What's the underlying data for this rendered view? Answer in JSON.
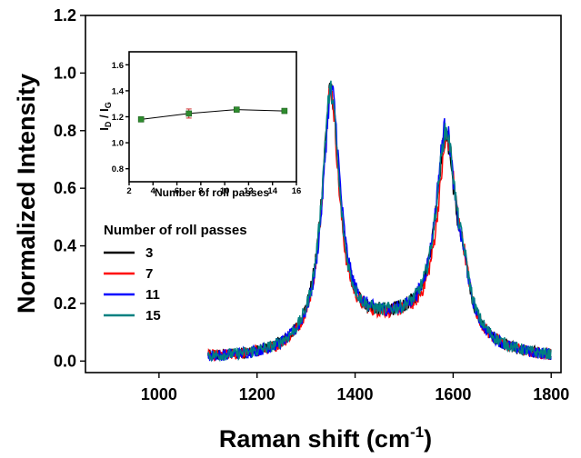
{
  "chart_data": [
    {
      "type": "line",
      "xlabel": "Raman shift (cm",
      "xlabel_sup": "-1",
      "xlabel_end": ")",
      "ylabel": "Normalized Intensity",
      "xlim": [
        850,
        1820
      ],
      "ylim": [
        -0.04,
        1.2
      ],
      "xticks": [
        1000,
        1200,
        1400,
        1600,
        1800
      ],
      "yticks": [
        "0.0",
        "0.2",
        "0.4",
        "0.6",
        "0.8",
        "1.0",
        "1.2"
      ],
      "yticks_values": [
        0,
        0.2,
        0.4,
        0.6,
        0.8,
        1.0,
        1.2
      ],
      "x_start": 1100,
      "x_end": 1800,
      "legend": {
        "title": "Number of roll passes",
        "placement": "left"
      },
      "series": [
        {
          "name": "3",
          "color": "#000000",
          "d_peak": 1350,
          "d_height": 1.0,
          "d_width": 22,
          "g_peak": 1585,
          "g_height": 0.8,
          "g_width": 26,
          "shoulder": 0.27
        },
        {
          "name": "7",
          "color": "#ff0000",
          "d_peak": 1350,
          "d_height": 1.0,
          "d_width": 21,
          "g_peak": 1588,
          "g_height": 0.79,
          "g_width": 25,
          "shoulder": 0.28
        },
        {
          "name": "11",
          "color": "#0000ff",
          "d_peak": 1352,
          "d_height": 1.0,
          "d_width": 22,
          "g_peak": 1585,
          "g_height": 0.84,
          "g_width": 25,
          "shoulder": 0.28
        },
        {
          "name": "15",
          "color": "#008080",
          "d_peak": 1350,
          "d_height": 1.0,
          "d_width": 22,
          "g_peak": 1586,
          "g_height": 0.82,
          "g_width": 26,
          "shoulder": 0.27
        }
      ]
    },
    {
      "type": "line",
      "xlabel": "Number of roll passes",
      "ylabel_main": "I",
      "ylabel_sub1": "D",
      "ylabel_mid": " / I",
      "ylabel_sub2": "G",
      "xlim": [
        2,
        16
      ],
      "ylim": [
        0.7,
        1.7
      ],
      "xticks": [
        "2",
        "4",
        "6",
        "8",
        "10",
        "12",
        "14",
        "16"
      ],
      "xticks_values": [
        2,
        4,
        6,
        8,
        10,
        12,
        14,
        16
      ],
      "yticks": [
        "0.8",
        "1.0",
        "1.2",
        "1.4",
        "1.6"
      ],
      "yticks_values": [
        0.8,
        1.0,
        1.2,
        1.4,
        1.6
      ],
      "x": [
        3,
        7,
        11,
        15
      ],
      "y": [
        1.18,
        1.225,
        1.255,
        1.245
      ],
      "error": [
        0.01,
        0.035,
        0.015,
        0.015
      ],
      "line_color": "#000000",
      "marker_color": "#2e8b2e",
      "error_color": "#cc3333"
    }
  ]
}
